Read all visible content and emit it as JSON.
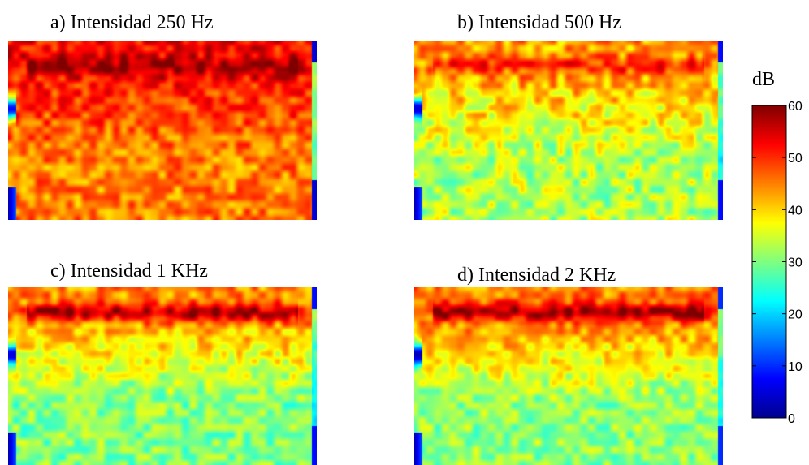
{
  "chart_data": [
    {
      "type": "heatmap",
      "title": "a) Intensidad 250 Hz",
      "xlabel": "",
      "ylabel": "",
      "colormap": "jet",
      "clim": [
        0,
        60
      ],
      "grid": false,
      "pattern": {
        "top_band": 58,
        "upper": 52,
        "lower": 45,
        "left_spot": 8,
        "left_bottom_spot": 3,
        "right_edge": 5,
        "spread": 6
      }
    },
    {
      "type": "heatmap",
      "title": "b) Intensidad 500 Hz",
      "xlabel": "",
      "ylabel": "",
      "colormap": "jet",
      "clim": [
        0,
        60
      ],
      "grid": false,
      "pattern": {
        "top_band": 50,
        "upper": 43,
        "lower": 33,
        "left_spot": 5,
        "left_bottom_spot": 3,
        "right_edge": 8,
        "spread": 7
      }
    },
    {
      "type": "heatmap",
      "title": "c) Intensidad 1 KHz",
      "xlabel": "",
      "ylabel": "",
      "colormap": "jet",
      "clim": [
        0,
        60
      ],
      "grid": false,
      "pattern": {
        "top_band": 57,
        "upper": 44,
        "lower": 30,
        "left_spot": 5,
        "left_bottom_spot": 3,
        "right_edge": 8,
        "spread": 6
      }
    },
    {
      "type": "heatmap",
      "title": "d) Intensidad 2 KHz",
      "xlabel": "",
      "ylabel": "",
      "colormap": "jet",
      "clim": [
        0,
        60
      ],
      "grid": false,
      "pattern": {
        "top_band": 58,
        "upper": 45,
        "lower": 31,
        "left_spot": 3,
        "left_bottom_spot": 3,
        "right_edge": 10,
        "spread": 6
      }
    }
  ],
  "colorbar": {
    "label": "dB",
    "min": 0,
    "max": 60,
    "ticks": [
      "0",
      "10",
      "20",
      "30",
      "40",
      "50",
      "60"
    ]
  }
}
